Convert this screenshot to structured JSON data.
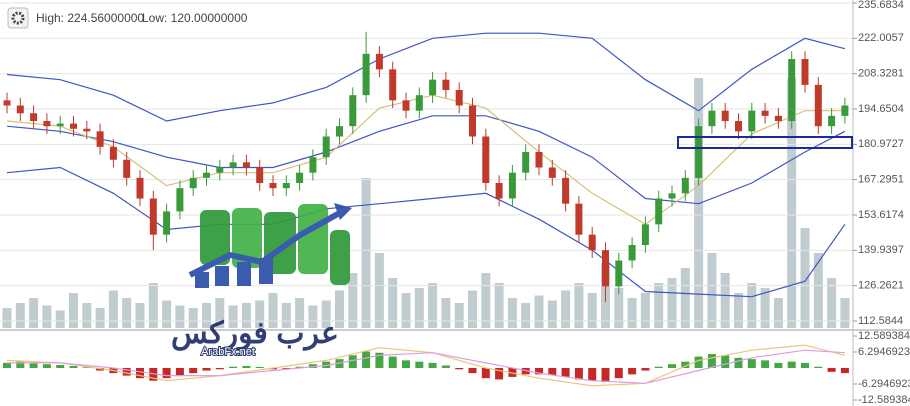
{
  "header": {
    "high": "High: 224.56000000",
    "low": "Low: 120.00000000"
  },
  "watermark": {
    "arabic": "عرب فوركس",
    "latin": "ArabFx.net"
  },
  "chart_data": [
    {
      "type": "candlestick",
      "open": [
        198,
        196,
        193,
        190,
        188,
        189,
        187,
        186,
        180,
        175,
        168,
        160,
        146,
        155,
        164,
        168,
        170,
        172,
        174,
        172,
        166,
        164,
        166,
        170,
        176,
        184,
        188,
        200,
        216,
        210,
        198,
        194,
        200,
        206,
        202,
        196,
        184,
        166,
        160,
        170,
        178,
        172,
        168,
        158,
        146,
        140,
        126,
        136,
        142,
        150,
        160,
        162,
        168,
        188,
        194,
        190,
        186,
        194,
        192,
        190,
        214,
        204,
        188,
        192
      ],
      "high": [
        201,
        199,
        196,
        193,
        192,
        192,
        190,
        189,
        183,
        178,
        171,
        163,
        158,
        167,
        171,
        173,
        175,
        177,
        177,
        175,
        169,
        169,
        173,
        179,
        187,
        191,
        203,
        224.56,
        219,
        213,
        201,
        203,
        209,
        209,
        205,
        199,
        187,
        169,
        173,
        181,
        181,
        175,
        171,
        161,
        149,
        143,
        139,
        145,
        153,
        163,
        165,
        171,
        191,
        197,
        197,
        193,
        197,
        197,
        195,
        217,
        217,
        207,
        195,
        199
      ],
      "low": [
        193,
        190,
        187,
        185,
        185,
        184,
        183,
        177,
        172,
        165,
        157,
        140,
        143,
        152,
        161,
        165,
        167,
        169,
        169,
        163,
        161,
        161,
        163,
        167,
        173,
        181,
        185,
        197,
        207,
        195,
        191,
        191,
        197,
        199,
        193,
        181,
        163,
        157,
        157,
        167,
        169,
        165,
        155,
        143,
        137,
        120,
        123,
        133,
        139,
        147,
        157,
        159,
        165,
        185,
        187,
        183,
        183,
        189,
        187,
        187,
        201,
        185,
        185,
        189
      ],
      "close": [
        196,
        193,
        190,
        188,
        189,
        187,
        186,
        180,
        175,
        168,
        160,
        146,
        155,
        164,
        168,
        170,
        172,
        174,
        172,
        166,
        164,
        166,
        170,
        176,
        184,
        188,
        200,
        216,
        210,
        198,
        194,
        200,
        206,
        202,
        196,
        184,
        166,
        160,
        170,
        178,
        172,
        168,
        158,
        146,
        140,
        126,
        136,
        142,
        150,
        160,
        162,
        168,
        188,
        194,
        190,
        186,
        194,
        192,
        190,
        214,
        204,
        188,
        192,
        196
      ],
      "up_color": "#3a9a3a",
      "down_color": "#c0392b",
      "ylim": [
        112.5844,
        235.6834
      ],
      "yticks": [
        235.6834,
        222.0057,
        208.3281,
        194.6504,
        180.9727,
        167.2951,
        153.6174,
        139.9397,
        126.2621,
        112.5844
      ],
      "grid": true,
      "bands": {
        "x": [
          0,
          4,
          8,
          12,
          16,
          20,
          24,
          28,
          32,
          36,
          40,
          44,
          48,
          52,
          56,
          60,
          63
        ],
        "series": [
          {
            "color": "#3d56c6",
            "values": [
              208,
              206,
              200,
              190,
              194,
              197,
              203,
              214,
              222,
              224,
              224,
              222,
              206,
              194,
              210,
              222,
              218
            ]
          },
          {
            "color": "#3d56c6",
            "values": [
              188,
              186,
              182,
              176,
              172,
              172,
              178,
              186,
              192,
              192,
              186,
              176,
              160,
              158,
              166,
              178,
              186
            ]
          },
          {
            "color": "#3d56c6",
            "values": [
              170,
              172,
              162,
              148,
              150,
              150,
              156,
              158,
              160,
              162,
              152,
              140,
              124,
              123,
              122,
              128,
              150
            ]
          },
          {
            "color": "#d6c07a",
            "values": [
              190,
              188,
              180,
              165,
              170,
              170,
              176,
              195,
              200,
              195,
              178,
              162,
              150,
              165,
              185,
              194,
              194
            ]
          }
        ]
      }
    },
    {
      "type": "bar",
      "color": "#b5c3c7",
      "ylim": [
        0,
        100
      ],
      "values": [
        8,
        10,
        12,
        9,
        7,
        14,
        10,
        8,
        15,
        12,
        10,
        18,
        11,
        9,
        8,
        10,
        12,
        9,
        10,
        11,
        14,
        10,
        12,
        9,
        11,
        15,
        22,
        60,
        30,
        20,
        14,
        16,
        18,
        12,
        10,
        15,
        22,
        18,
        12,
        10,
        13,
        11,
        15,
        18,
        14,
        26,
        16,
        12,
        14,
        18,
        20,
        24,
        100,
        30,
        22,
        14,
        18,
        16,
        12,
        100,
        40,
        30,
        20,
        12
      ]
    },
    {
      "type": "macd",
      "up_color": "#43a843",
      "down_color": "#c62828",
      "ylim": [
        -12.589384,
        12.5893846
      ],
      "yticks": [
        12.5893846,
        6.29469231,
        -6.2946923,
        -12.589384
      ],
      "histogram": [
        2,
        2.5,
        2,
        1.5,
        1.2,
        0.8,
        0.3,
        -1,
        -2,
        -3,
        -4,
        -5,
        -4,
        -3,
        -2,
        -1,
        -0.5,
        0.5,
        0.8,
        0.4,
        -0.5,
        -0.3,
        0.5,
        1.5,
        2.5,
        3.5,
        5,
        6.5,
        6,
        4.5,
        3,
        2.5,
        2,
        1,
        -0.5,
        -2,
        -4,
        -4.5,
        -3.5,
        -2.5,
        -2.5,
        -2.8,
        -3.5,
        -4.5,
        -5,
        -5.5,
        -4,
        -2.5,
        -1,
        0.5,
        1.5,
        2.5,
        4.5,
        5.5,
        5,
        4,
        3.5,
        3,
        2,
        2.5,
        2,
        0.5,
        -1.5,
        -2
      ],
      "x": [
        0,
        4,
        8,
        12,
        16,
        20,
        24,
        28,
        32,
        36,
        40,
        44,
        48,
        52,
        56,
        60,
        63
      ],
      "series": [
        {
          "color": "#e7c77d",
          "values": [
            3,
            2,
            -1,
            -5,
            -3,
            0,
            3,
            8,
            6,
            0,
            -4,
            -7,
            -6,
            3,
            7,
            9,
            5
          ]
        },
        {
          "color": "#e49be0",
          "values": [
            2,
            2,
            0,
            -3,
            -3,
            -1,
            1,
            5,
            6,
            2,
            -2,
            -5,
            -6,
            -1,
            4,
            7,
            6
          ]
        }
      ]
    }
  ]
}
